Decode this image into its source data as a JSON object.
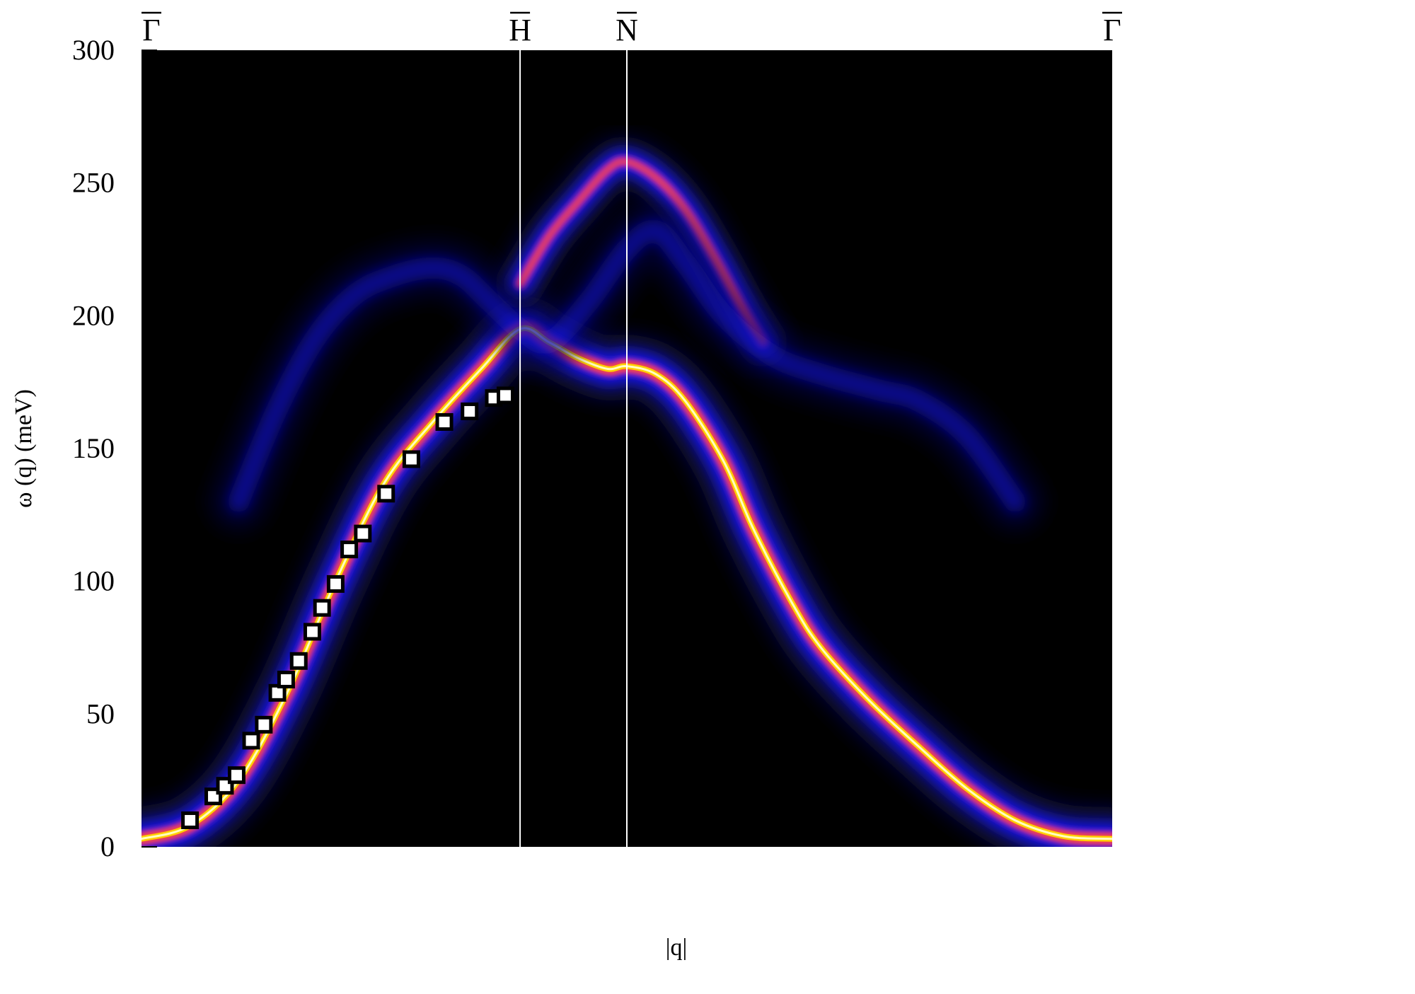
{
  "chart_data": {
    "type": "heatmap",
    "title": "",
    "xlabel": "|q|",
    "ylabel": "ω (q) (meV)",
    "ylim": [
      0,
      300
    ],
    "yticks": [
      0,
      50,
      100,
      150,
      200,
      250,
      300
    ],
    "xlim": [
      0,
      1
    ],
    "high_symmetry_points": [
      {
        "label": "Γ",
        "x": 0.0
      },
      {
        "label": "H",
        "x": 0.39
      },
      {
        "label": "N",
        "x": 0.5
      },
      {
        "label": "Γ",
        "x": 1.0
      }
    ],
    "colormap": [
      "#000000",
      "#0a0a4a",
      "#1a1aff",
      "#c020c0",
      "#ff5030",
      "#ffd000",
      "#ffffc0"
    ],
    "bands": [
      {
        "name": "primary",
        "intensity": 1.0,
        "points": [
          [
            0.0,
            3
          ],
          [
            0.05,
            8
          ],
          [
            0.1,
            25
          ],
          [
            0.15,
            58
          ],
          [
            0.2,
            100
          ],
          [
            0.25,
            137
          ],
          [
            0.3,
            160
          ],
          [
            0.35,
            180
          ],
          [
            0.39,
            195
          ],
          [
            0.42,
            190
          ],
          [
            0.45,
            184
          ],
          [
            0.48,
            180
          ],
          [
            0.5,
            181
          ],
          [
            0.53,
            178
          ],
          [
            0.56,
            168
          ],
          [
            0.6,
            145
          ],
          [
            0.63,
            120
          ],
          [
            0.67,
            92
          ],
          [
            0.7,
            75
          ],
          [
            0.75,
            55
          ],
          [
            0.8,
            38
          ],
          [
            0.85,
            22
          ],
          [
            0.9,
            10
          ],
          [
            0.95,
            4
          ],
          [
            1.0,
            3
          ]
        ]
      },
      {
        "name": "upper",
        "intensity": 0.55,
        "points": [
          [
            0.39,
            212
          ],
          [
            0.42,
            230
          ],
          [
            0.45,
            243
          ],
          [
            0.48,
            255
          ],
          [
            0.5,
            258
          ],
          [
            0.53,
            252
          ],
          [
            0.56,
            240
          ],
          [
            0.59,
            222
          ],
          [
            0.62,
            202
          ],
          [
            0.64,
            190
          ]
        ]
      },
      {
        "name": "faint",
        "intensity": 0.22,
        "points": [
          [
            0.1,
            130
          ],
          [
            0.14,
            165
          ],
          [
            0.18,
            192
          ],
          [
            0.22,
            208
          ],
          [
            0.26,
            215
          ],
          [
            0.3,
            218
          ],
          [
            0.33,
            215
          ],
          [
            0.36,
            205
          ],
          [
            0.39,
            195
          ],
          [
            0.42,
            190
          ],
          [
            0.46,
            205
          ],
          [
            0.5,
            225
          ],
          [
            0.53,
            232
          ],
          [
            0.56,
            220
          ],
          [
            0.6,
            200
          ],
          [
            0.65,
            185
          ],
          [
            0.7,
            178
          ],
          [
            0.76,
            172
          ],
          [
            0.8,
            168
          ],
          [
            0.85,
            155
          ],
          [
            0.9,
            130
          ]
        ]
      }
    ],
    "experimental_points": [
      {
        "x": 0.05,
        "y": 10
      },
      {
        "x": 0.074,
        "y": 19
      },
      {
        "x": 0.086,
        "y": 23
      },
      {
        "x": 0.098,
        "y": 27
      },
      {
        "x": 0.113,
        "y": 40
      },
      {
        "x": 0.126,
        "y": 46
      },
      {
        "x": 0.14,
        "y": 58
      },
      {
        "x": 0.149,
        "y": 63
      },
      {
        "x": 0.162,
        "y": 70
      },
      {
        "x": 0.176,
        "y": 81
      },
      {
        "x": 0.186,
        "y": 90
      },
      {
        "x": 0.2,
        "y": 99
      },
      {
        "x": 0.214,
        "y": 112
      },
      {
        "x": 0.228,
        "y": 118
      },
      {
        "x": 0.252,
        "y": 133
      },
      {
        "x": 0.278,
        "y": 146
      },
      {
        "x": 0.312,
        "y": 160
      },
      {
        "x": 0.338,
        "y": 164
      },
      {
        "x": 0.363,
        "y": 169
      },
      {
        "x": 0.375,
        "y": 170
      }
    ],
    "grid": false,
    "legend": "none"
  }
}
